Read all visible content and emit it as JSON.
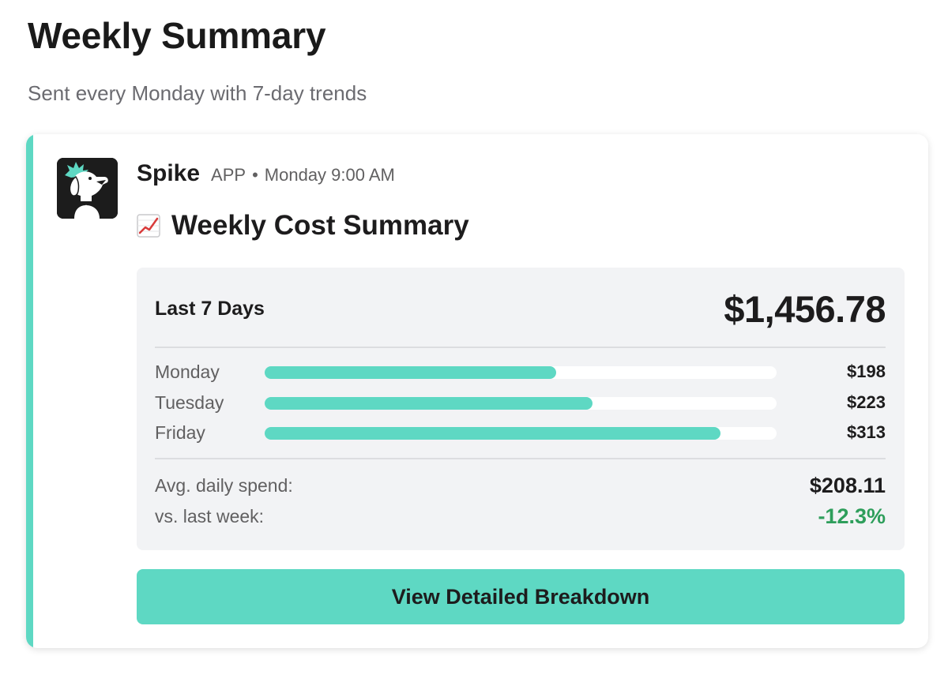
{
  "page": {
    "title": "Weekly Summary",
    "subtitle": "Sent every Monday with 7-day trends"
  },
  "colors": {
    "accent": "#5ed8c3",
    "positive": "#2e9e5b"
  },
  "message": {
    "sender": "Spike",
    "badge": "APP",
    "separator": "•",
    "timestamp": "Monday 9:00 AM",
    "avatar_icon": "dog-mascot-icon",
    "title_icon": "chart-increasing-emoji-icon",
    "title": "Weekly Cost Summary"
  },
  "summary": {
    "period_label": "Last 7 Days",
    "total": "$1,456.78",
    "days": [
      {
        "label": "Monday",
        "amount": "$198",
        "fill": 0.57
      },
      {
        "label": "Tuesday",
        "amount": "$223",
        "fill": 0.64
      },
      {
        "label": "Friday",
        "amount": "$313",
        "fill": 0.89
      }
    ],
    "avg_label": "Avg. daily spend:",
    "avg_value": "$208.11",
    "change_label": "vs. last week:",
    "change_value": "-12.3%"
  },
  "actions": {
    "breakdown_label": "View Detailed Breakdown"
  }
}
